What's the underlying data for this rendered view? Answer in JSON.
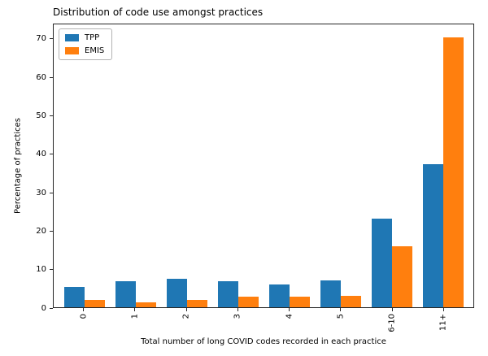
{
  "chart_data": {
    "type": "bar",
    "title": "Distribution of code use amongst practices",
    "xlabel": "Total number of long COVID codes recorded in each practice",
    "ylabel": "Percentage of practices",
    "categories": [
      "0",
      "1",
      "2",
      "3",
      "4",
      "5",
      "6-10",
      "11+"
    ],
    "series": [
      {
        "name": "TPP",
        "color": "#1f77b4",
        "values": [
          5.3,
          6.9,
          7.5,
          6.8,
          5.9,
          7.1,
          23.2,
          37.5
        ]
      },
      {
        "name": "EMIS",
        "color": "#ff7f0e",
        "values": [
          1.9,
          1.2,
          1.9,
          2.7,
          2.8,
          3.0,
          15.9,
          70.5
        ]
      }
    ],
    "yticks": [
      0,
      10,
      20,
      30,
      40,
      50,
      60,
      70
    ],
    "ylim": [
      0,
      74
    ],
    "grid": false,
    "legend_position": "upper left",
    "colors": {
      "background": "#ffffff",
      "axis": "#262626",
      "text": "#000000",
      "legend_border": "#b3b3b3"
    }
  }
}
